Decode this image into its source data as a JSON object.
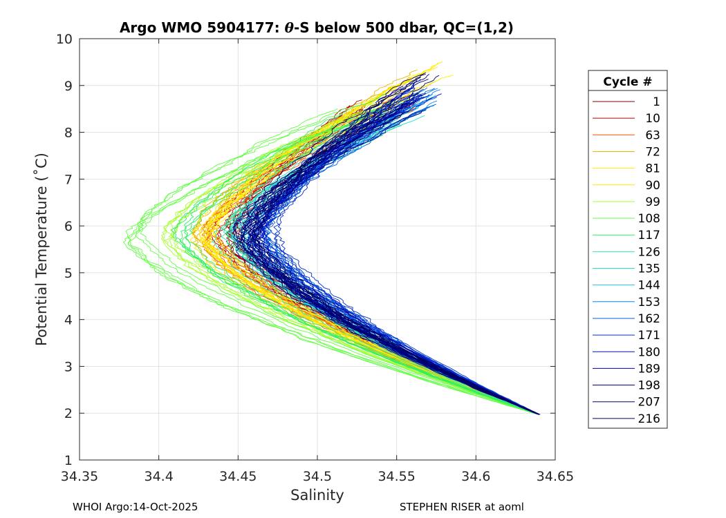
{
  "chart_data": {
    "type": "line",
    "title": "Argo WMO 5904177: θ-S below 500 dbar,  QC=(1,2)",
    "title_prefix": "Argo WMO 5904177: ",
    "title_theta": "θ",
    "title_suffix": "-S below 500 dbar,  QC=(1,2)",
    "xlabel": "Salinity",
    "ylabel": "Potential Temperature (˚C)",
    "xlim": [
      34.35,
      34.65
    ],
    "ylim": [
      1,
      10
    ],
    "xticks": [
      "34.35",
      "34.4",
      "34.45",
      "34.5",
      "34.55",
      "34.6",
      "34.65"
    ],
    "xtick_values": [
      34.35,
      34.4,
      34.45,
      34.5,
      34.55,
      34.6,
      34.65
    ],
    "yticks": [
      "1",
      "2",
      "3",
      "4",
      "5",
      "6",
      "7",
      "8",
      "9",
      "10"
    ],
    "ytick_values": [
      1,
      2,
      3,
      4,
      5,
      6,
      7,
      8,
      9,
      10
    ],
    "grid": true,
    "legend_title": "Cycle #",
    "legend_position": "right",
    "series": [
      {
        "name": "1",
        "color": "#800000",
        "s_min": 34.445,
        "s_top": 34.54,
        "t_top": 8.6
      },
      {
        "name": "10",
        "color": "#b00000",
        "s_min": 34.44,
        "s_top": 34.53,
        "t_top": 8.5
      },
      {
        "name": "63",
        "color": "#ff5000",
        "s_min": 34.432,
        "s_top": 34.56,
        "t_top": 8.7
      },
      {
        "name": "72",
        "color": "#e8b800",
        "s_min": 34.427,
        "s_top": 34.57,
        "t_top": 9.1
      },
      {
        "name": "81",
        "color": "#ffee00",
        "s_min": 34.43,
        "s_top": 34.575,
        "t_top": 9.3
      },
      {
        "name": "90",
        "color": "#ffe600",
        "s_min": 34.425,
        "s_top": 34.56,
        "t_top": 9.0
      },
      {
        "name": "99",
        "color": "#a8ff30",
        "s_min": 34.405,
        "s_top": 34.53,
        "t_top": 8.5
      },
      {
        "name": "108",
        "color": "#60ff40",
        "s_min": 34.382,
        "s_top": 34.52,
        "t_top": 8.3
      },
      {
        "name": "117",
        "color": "#30ef60",
        "s_min": 34.415,
        "s_top": 34.55,
        "t_top": 8.6
      },
      {
        "name": "126",
        "color": "#30e8a0",
        "s_min": 34.44,
        "s_top": 34.55,
        "t_top": 8.4
      },
      {
        "name": "135",
        "color": "#20e0c8",
        "s_min": 34.447,
        "s_top": 34.56,
        "t_top": 8.5
      },
      {
        "name": "144",
        "color": "#20c0e8",
        "s_min": 34.452,
        "s_top": 34.57,
        "t_top": 8.7
      },
      {
        "name": "153",
        "color": "#1080f0",
        "s_min": 34.462,
        "s_top": 34.575,
        "t_top": 8.9
      },
      {
        "name": "162",
        "color": "#0060e0",
        "s_min": 34.465,
        "s_top": 34.57,
        "t_top": 8.8
      },
      {
        "name": "171",
        "color": "#0030d0",
        "s_min": 34.468,
        "s_top": 34.57,
        "t_top": 8.9
      },
      {
        "name": "180",
        "color": "#0010c0",
        "s_min": 34.46,
        "s_top": 34.57,
        "t_top": 9.0
      },
      {
        "name": "189",
        "color": "#0000a8",
        "s_min": 34.457,
        "s_top": 34.56,
        "t_top": 8.8
      },
      {
        "name": "198",
        "color": "#00008c",
        "s_min": 34.455,
        "s_top": 34.56,
        "t_top": 8.7
      },
      {
        "name": "207",
        "color": "#000070",
        "s_min": 34.452,
        "s_top": 34.55,
        "t_top": 8.6
      },
      {
        "name": "216",
        "color": "#000060",
        "s_min": 34.458,
        "s_top": 34.57,
        "t_top": 9.1
      }
    ],
    "common_deep_point": {
      "salinity": 34.64,
      "temperature": 1.97
    },
    "min_temperature_at_minimum_salinity": 5.8
  },
  "footer": {
    "left": "WHOI Argo:14-Oct-2025",
    "right": "STEPHEN RISER at aoml"
  }
}
